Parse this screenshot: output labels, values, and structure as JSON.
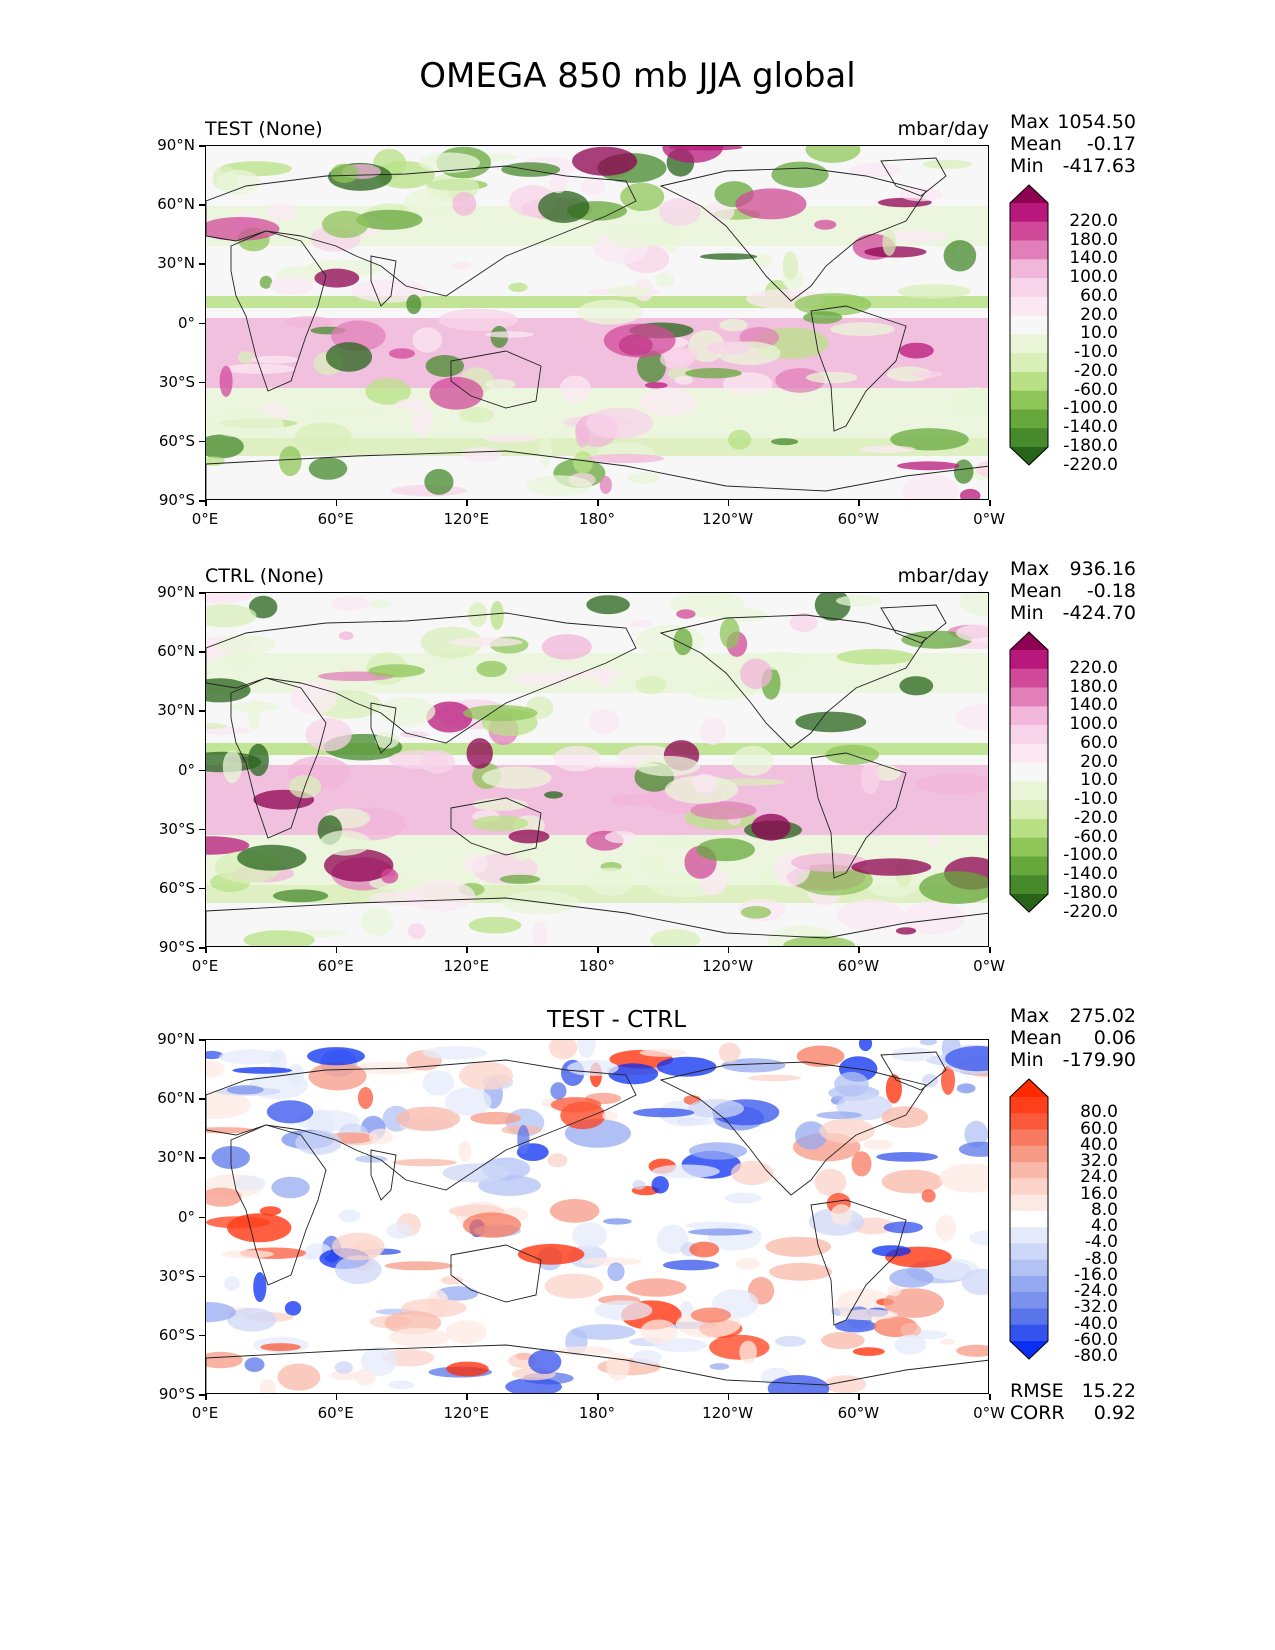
{
  "figure": {
    "title": "OMEGA 850 mb JJA global"
  },
  "panels": [
    {
      "id": "test",
      "left_title": "TEST (None)",
      "center_title": "",
      "units": "mbar/day",
      "stats": {
        "max_label": "Max",
        "max": "1054.50",
        "mean_label": "Mean",
        "mean": "-0.17",
        "min_label": "Min",
        "min": "-417.63"
      },
      "colorbar": {
        "levels": [
          "220.0",
          "180.0",
          "140.0",
          "100.0",
          "60.0",
          "20.0",
          "10.0",
          "-10.0",
          "-20.0",
          "-60.0",
          "-100.0",
          "-140.0",
          "-180.0",
          "-220.0"
        ],
        "colors": [
          "#8e0152",
          "#b8177b",
          "#d14a9a",
          "#e27fb9",
          "#f1b6da",
          "#f8d4ea",
          "#fbe8f3",
          "#f7f7f7",
          "#eaf5d8",
          "#d9efb9",
          "#b8e186",
          "#8fc65a",
          "#67a83c",
          "#468a2c",
          "#276419"
        ]
      },
      "lat_labels": [
        "90°N",
        "60°N",
        "30°N",
        "0°",
        "30°S",
        "60°S",
        "90°S"
      ],
      "lon_labels": [
        "0°E",
        "60°E",
        "120°E",
        "180°",
        "120°W",
        "60°W",
        "0°W"
      ]
    },
    {
      "id": "ctrl",
      "left_title": "CTRL (None)",
      "center_title": "",
      "units": "mbar/day",
      "stats": {
        "max_label": "Max",
        "max": "936.16",
        "mean_label": "Mean",
        "mean": "-0.18",
        "min_label": "Min",
        "min": "-424.70"
      },
      "colorbar": {
        "levels": [
          "220.0",
          "180.0",
          "140.0",
          "100.0",
          "60.0",
          "20.0",
          "10.0",
          "-10.0",
          "-20.0",
          "-60.0",
          "-100.0",
          "-140.0",
          "-180.0",
          "-220.0"
        ],
        "colors": [
          "#8e0152",
          "#b8177b",
          "#d14a9a",
          "#e27fb9",
          "#f1b6da",
          "#f8d4ea",
          "#fbe8f3",
          "#f7f7f7",
          "#eaf5d8",
          "#d9efb9",
          "#b8e186",
          "#8fc65a",
          "#67a83c",
          "#468a2c",
          "#276419"
        ]
      },
      "lat_labels": [
        "90°N",
        "60°N",
        "30°N",
        "0°",
        "30°S",
        "60°S",
        "90°S"
      ],
      "lon_labels": [
        "0°E",
        "60°E",
        "120°E",
        "180°",
        "120°W",
        "60°W",
        "0°W"
      ]
    },
    {
      "id": "diff",
      "left_title": "",
      "center_title": "TEST - CTRL",
      "units": "",
      "stats": {
        "max_label": "Max",
        "max": "275.02",
        "mean_label": "Mean",
        "mean": "0.06",
        "min_label": "Min",
        "min": "-179.90"
      },
      "metrics": {
        "rmse_label": "RMSE",
        "rmse": "15.22",
        "corr_label": "CORR",
        "corr": "0.92"
      },
      "colorbar": {
        "levels": [
          "80.0",
          "60.0",
          "40.0",
          "32.0",
          "24.0",
          "16.0",
          "8.0",
          "4.0",
          "-4.0",
          "-8.0",
          "-16.0",
          "-24.0",
          "-32.0",
          "-40.0",
          "-60.0",
          "-80.0"
        ],
        "colors": [
          "#ff2a00",
          "#ff3f1a",
          "#fb5a3a",
          "#f87a60",
          "#f79a85",
          "#f9b8a8",
          "#fbd3c8",
          "#fde9e3",
          "#ffffff",
          "#e6ebfb",
          "#cdd7f7",
          "#b2c2f3",
          "#95a9f0",
          "#7a91ed",
          "#5a75ea",
          "#3352ee",
          "#0a2ff2"
        ]
      },
      "lat_labels": [
        "90°N",
        "60°N",
        "30°N",
        "0°",
        "30°S",
        "60°S",
        "90°S"
      ],
      "lon_labels": [
        "0°E",
        "60°E",
        "120°E",
        "180°",
        "120°W",
        "60°W",
        "0°W"
      ]
    }
  ]
}
